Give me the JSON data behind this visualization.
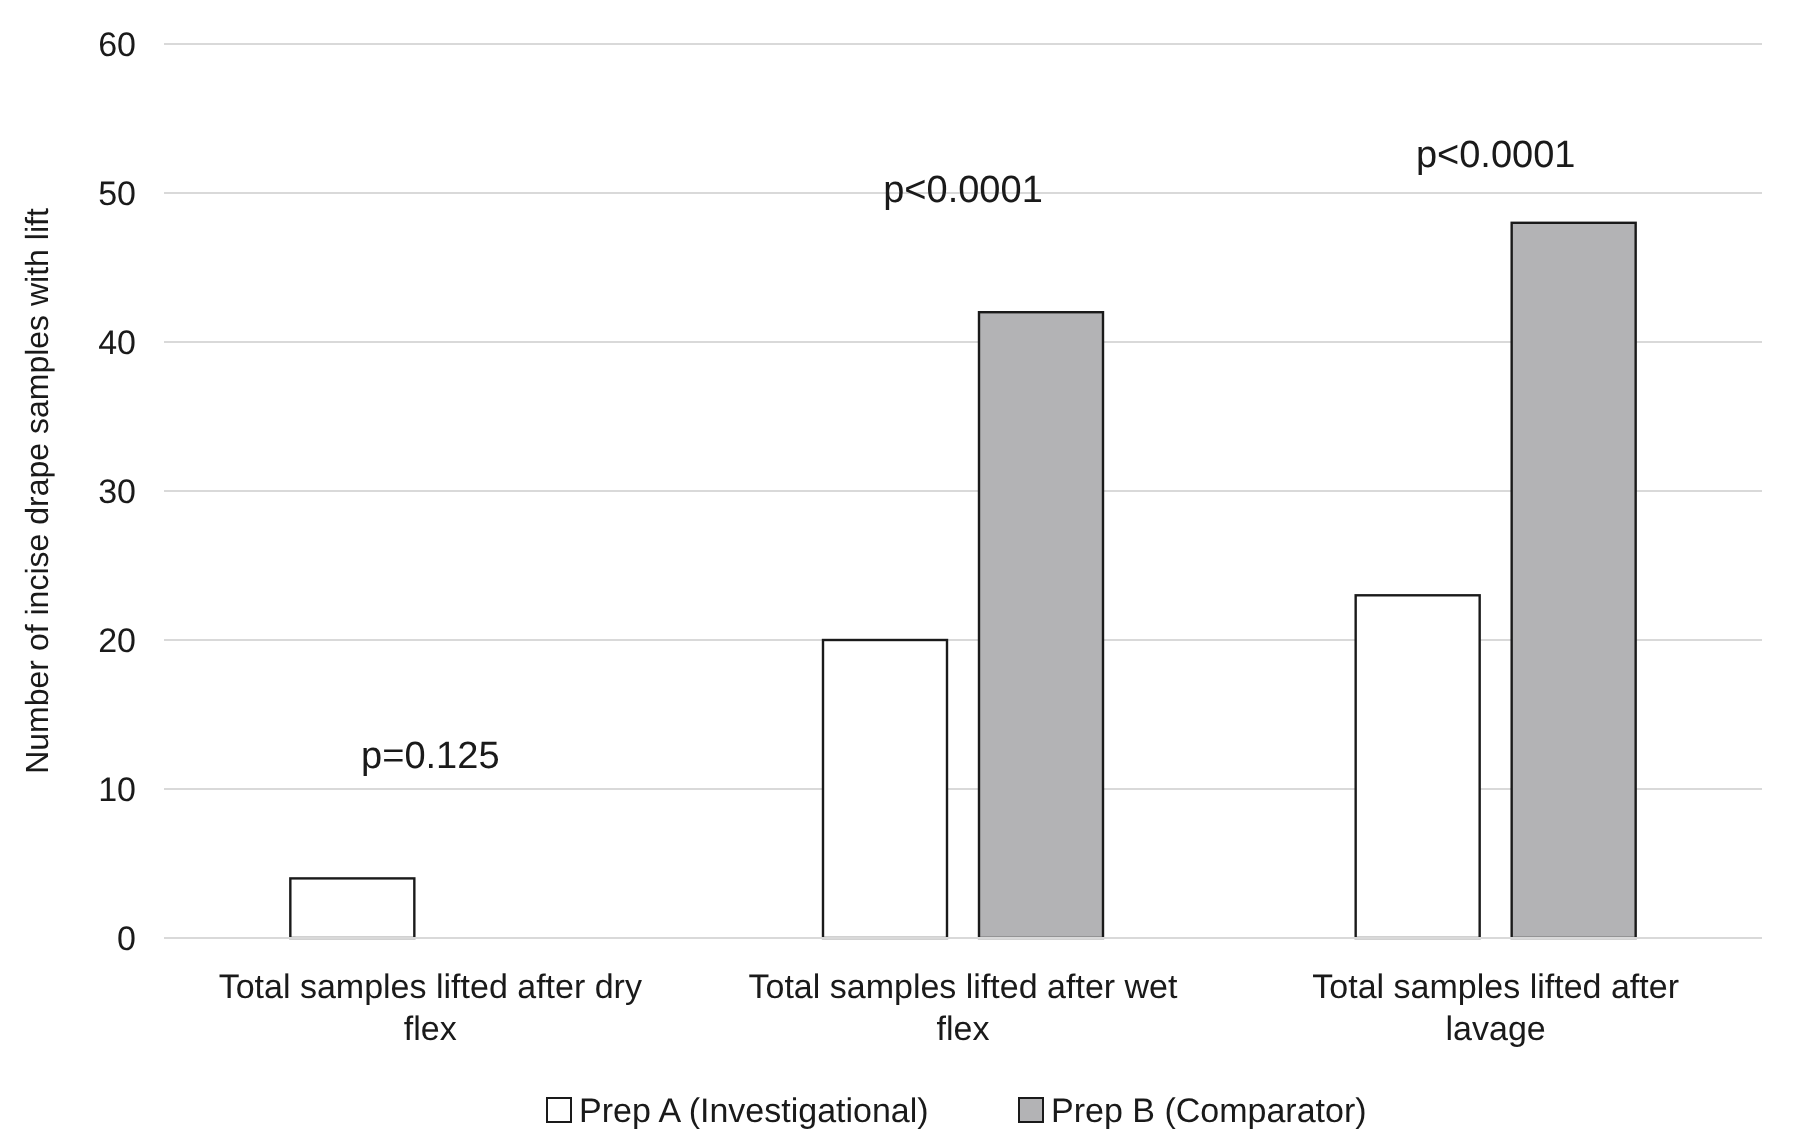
{
  "chart_data": {
    "type": "bar",
    "ylabel": "Number of incise drape samples with lift",
    "categories": [
      "Total samples lifted after dry flex",
      "Total samples lifted after wet flex",
      "Total samples lifted after lavage"
    ],
    "series": [
      {
        "name": "Prep A (Investigational)",
        "color": "#ffffff",
        "values": [
          4,
          20,
          23
        ]
      },
      {
        "name": "Prep B (Comparator)",
        "color": "#b3b3b5",
        "values": [
          0,
          42,
          48
        ]
      }
    ],
    "ylim": [
      0,
      60
    ],
    "yticks": [
      0,
      10,
      20,
      30,
      40,
      50,
      60
    ],
    "grid": "y",
    "legend": "bottom",
    "annotations": [
      "p=0.125",
      "p<0.0001",
      "p<0.0001"
    ]
  }
}
